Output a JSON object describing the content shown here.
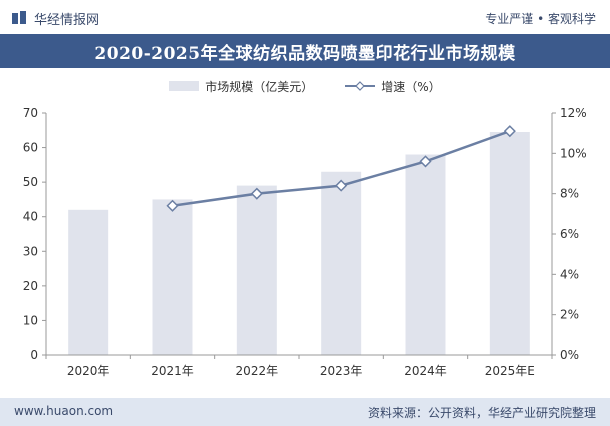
{
  "header": {
    "brand_name": "华经情报网",
    "tagline": "专业严谨 • 客观科学",
    "title": "2020-2025年全球纺织品数码喷墨印花行业市场规模"
  },
  "footer": {
    "url": "www.huaon.com",
    "source": "资料来源：公开资料，华经产业研究院整理"
  },
  "colors": {
    "title_bg": "#3c5a8c",
    "bar": "#e0e3ec",
    "line": "#6b7fa3",
    "footer_bg": "#dfe6f1"
  },
  "chart_data": {
    "type": "bar",
    "title": "2020-2025年全球纺织品数码喷墨印花行业市场规模",
    "categories": [
      "2020年",
      "2021年",
      "2022年",
      "2023年",
      "2024年",
      "2025年E"
    ],
    "series": [
      {
        "name": "市场规模（亿美元）",
        "type": "bar",
        "axis": "left",
        "values": [
          42,
          45,
          49,
          53,
          58,
          64.5
        ]
      },
      {
        "name": "增速（%）",
        "type": "line",
        "axis": "right",
        "values": [
          null,
          7.4,
          8.0,
          8.4,
          9.6,
          11.1
        ]
      }
    ],
    "y_left": {
      "min": 0,
      "max": 70,
      "ticks": [
        "0",
        "10",
        "20",
        "30",
        "40",
        "50",
        "60",
        "70"
      ]
    },
    "y_right": {
      "min": 0,
      "max": 12,
      "ticks": [
        "0%",
        "2%",
        "4%",
        "6%",
        "8%",
        "10%",
        "12%"
      ]
    },
    "legend": [
      "市场规模（亿美元）",
      "增速（%）"
    ],
    "legend_position": "top"
  }
}
